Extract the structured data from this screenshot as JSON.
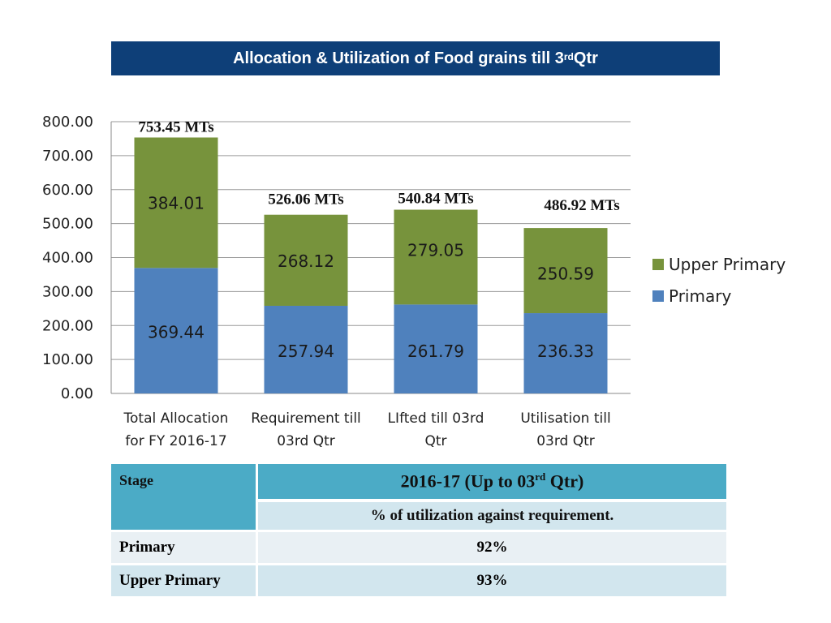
{
  "title": {
    "prefix": "Allocation & Utilization of Food grains till 3",
    "sup": "rd",
    "suffix": " Qtr"
  },
  "colors": {
    "primary": "#4f81bd",
    "upper_primary": "#77933c",
    "title_bg": "#0e3f78",
    "table_header": "#4babc6"
  },
  "chart_data": {
    "type": "bar",
    "stacked": true,
    "categories": [
      [
        "Total Allocation",
        "for FY 2016-17"
      ],
      [
        "Requirement till",
        "03rd Qtr"
      ],
      [
        "LIfted till 03rd",
        "Qtr"
      ],
      [
        "Utilisation till",
        "03rd Qtr"
      ]
    ],
    "series": [
      {
        "name": "Primary",
        "values": [
          369.44,
          257.94,
          261.79,
          236.33
        ],
        "labels": [
          "369.44",
          "257.94",
          "261.79",
          "236.33"
        ]
      },
      {
        "name": "Upper Primary",
        "values": [
          384.01,
          268.12,
          279.05,
          250.59
        ],
        "labels": [
          "384.01",
          "268.12",
          "279.05",
          "250.59"
        ]
      }
    ],
    "totals": [
      "753.45 MTs",
      "526.06 MTs",
      "540.84 MTs",
      "486.92 MTs"
    ],
    "yticks": [
      "0.00",
      "100.00",
      "200.00",
      "300.00",
      "400.00",
      "500.00",
      "600.00",
      "700.00",
      "800.00"
    ],
    "ylim": [
      0,
      800
    ],
    "legend": [
      "Upper Primary",
      "Primary"
    ],
    "legend_position": "right",
    "grid": true
  },
  "table": {
    "stage_header": "Stage",
    "period_prefix": "2016-17 (Up to 03",
    "period_sup": "rd",
    "period_suffix": " Qtr)",
    "metric": "% of utilization against requirement.",
    "rows": [
      {
        "stage": "Primary",
        "value": "92%"
      },
      {
        "stage": "Upper Primary",
        "value": "93%"
      }
    ]
  }
}
